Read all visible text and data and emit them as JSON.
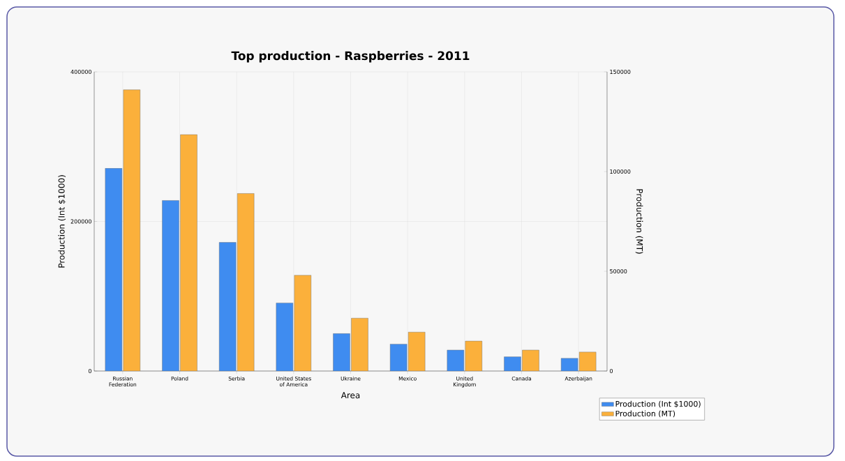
{
  "chart_data": {
    "type": "bar",
    "title": "Top production - Raspberries - 2011",
    "xlabel": "Area",
    "ylabel": "Production (Int $1000)",
    "y2label": "Production (MT)",
    "categories": [
      "Russian Federation",
      "Poland",
      "Serbia",
      "United States of America",
      "Ukraine",
      "Mexico",
      "United Kingdom",
      "Canada",
      "Azerbaijan"
    ],
    "series": [
      {
        "name": "Production (Int $1000)",
        "color": "#3f8cf0",
        "values": [
          271000,
          228000,
          172000,
          91000,
          50000,
          36000,
          28000,
          19000,
          17000
        ]
      },
      {
        "name": "Production (MT)",
        "color": "#fbb03b",
        "axis": "y2",
        "values": [
          141000,
          118500,
          89000,
          48000,
          26500,
          19500,
          15000,
          10500,
          9500
        ]
      }
    ],
    "ylim": [
      0,
      400000
    ],
    "yticks": [
      0,
      200000,
      400000
    ],
    "y2lim": [
      0,
      150000
    ],
    "y2ticks": [
      0,
      50000,
      100000,
      150000
    ],
    "grid": true,
    "legend": "bottom right"
  }
}
